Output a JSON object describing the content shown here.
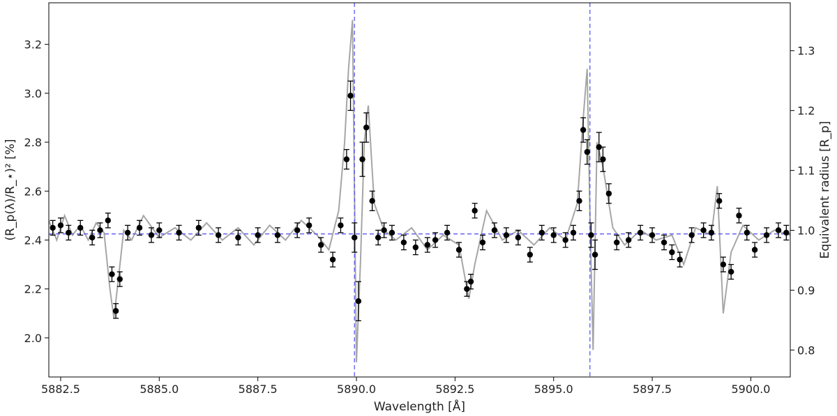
{
  "chart_data": {
    "type": "scatter",
    "title": "",
    "xlabel": "Wavelength [Å]",
    "ylabel_left": "(R_p(λ)/R_⋆)² [%]",
    "ylabel_right": "Equivalent radius [R_p]",
    "xlim": [
      5882.2,
      5901.0
    ],
    "ylim_left": [
      1.84,
      3.37
    ],
    "ylim_right": [
      0.755,
      1.38
    ],
    "x_ticks": [
      5882.5,
      5885.0,
      5887.5,
      5890.0,
      5892.5,
      5895.0,
      5897.5,
      5900.0
    ],
    "x_tick_labels": [
      "5882.5",
      "5885.0",
      "5887.5",
      "5890.0",
      "5892.5",
      "5895.0",
      "5897.5",
      "5900.0"
    ],
    "y_left_ticks": [
      2.0,
      2.2,
      2.4,
      2.6,
      2.8,
      3.0,
      3.2
    ],
    "y_left_tick_labels": [
      "2.0",
      "2.2",
      "2.4",
      "2.6",
      "2.8",
      "3.0",
      "3.2"
    ],
    "y_right_ticks": [
      0.8,
      0.9,
      1.0,
      1.1,
      1.2,
      1.3
    ],
    "y_right_tick_labels": [
      "0.8",
      "0.9",
      "1.0",
      "1.1",
      "1.2",
      "1.3"
    ],
    "baseline": 2.425,
    "vlines": [
      5889.95,
      5895.92
    ],
    "grid": false,
    "colors": {
      "points": "#000000",
      "spectrum": "#a6a6a6",
      "reference": "#5a5aee"
    },
    "series": [
      {
        "kind": "binned points with error bars",
        "x": [
          5882.3,
          5882.5,
          5882.7,
          5883.0,
          5883.3,
          5883.5,
          5883.7,
          5883.8,
          5883.9,
          5884.0,
          5884.2,
          5884.5,
          5884.8,
          5885.0,
          5885.5,
          5886.0,
          5886.5,
          5887.0,
          5887.5,
          5888.0,
          5888.5,
          5888.8,
          5889.1,
          5889.4,
          5889.6,
          5889.75,
          5889.85,
          5889.95,
          5890.05,
          5890.15,
          5890.25,
          5890.4,
          5890.55,
          5890.7,
          5890.9,
          5891.2,
          5891.5,
          5891.8,
          5892.0,
          5892.3,
          5892.6,
          5892.8,
          5892.9,
          5893.0,
          5893.2,
          5893.5,
          5893.8,
          5894.1,
          5894.4,
          5894.7,
          5895.0,
          5895.3,
          5895.5,
          5895.65,
          5895.75,
          5895.85,
          5895.95,
          5896.05,
          5896.15,
          5896.25,
          5896.4,
          5896.6,
          5896.9,
          5897.2,
          5897.5,
          5897.8,
          5898.0,
          5898.2,
          5898.5,
          5898.8,
          5899.0,
          5899.2,
          5899.3,
          5899.5,
          5899.7,
          5899.9,
          5900.1,
          5900.4,
          5900.7,
          5900.9
        ],
        "y": [
          2.45,
          2.46,
          2.43,
          2.45,
          2.41,
          2.44,
          2.48,
          2.26,
          2.11,
          2.24,
          2.43,
          2.45,
          2.42,
          2.44,
          2.43,
          2.45,
          2.42,
          2.41,
          2.42,
          2.42,
          2.44,
          2.46,
          2.38,
          2.32,
          2.46,
          2.73,
          2.99,
          2.41,
          2.15,
          2.73,
          2.86,
          2.56,
          2.41,
          2.44,
          2.43,
          2.39,
          2.37,
          2.38,
          2.4,
          2.43,
          2.36,
          2.2,
          2.23,
          2.52,
          2.39,
          2.44,
          2.42,
          2.41,
          2.34,
          2.43,
          2.42,
          2.4,
          2.43,
          2.56,
          2.85,
          2.76,
          2.42,
          2.34,
          2.78,
          2.73,
          2.59,
          2.39,
          2.4,
          2.43,
          2.42,
          2.39,
          2.35,
          2.32,
          2.42,
          2.44,
          2.43,
          2.56,
          2.3,
          2.27,
          2.5,
          2.43,
          2.36,
          2.42,
          2.44,
          2.43
        ],
        "yerr": [
          0.03,
          0.03,
          0.03,
          0.03,
          0.03,
          0.03,
          0.03,
          0.03,
          0.03,
          0.03,
          0.03,
          0.03,
          0.03,
          0.03,
          0.03,
          0.03,
          0.03,
          0.03,
          0.03,
          0.03,
          0.03,
          0.03,
          0.03,
          0.03,
          0.03,
          0.04,
          0.06,
          0.06,
          0.08,
          0.07,
          0.06,
          0.04,
          0.03,
          0.03,
          0.03,
          0.03,
          0.03,
          0.03,
          0.03,
          0.03,
          0.03,
          0.03,
          0.03,
          0.03,
          0.03,
          0.03,
          0.03,
          0.03,
          0.03,
          0.03,
          0.03,
          0.03,
          0.03,
          0.04,
          0.05,
          0.05,
          0.05,
          0.06,
          0.06,
          0.05,
          0.04,
          0.03,
          0.03,
          0.03,
          0.03,
          0.03,
          0.03,
          0.03,
          0.03,
          0.03,
          0.03,
          0.03,
          0.03,
          0.03,
          0.03,
          0.03,
          0.03,
          0.03,
          0.03,
          0.03
        ]
      },
      {
        "kind": "full-resolution spectrum",
        "x": [
          5882.2,
          5882.4,
          5882.6,
          5882.8,
          5883.0,
          5883.2,
          5883.4,
          5883.6,
          5883.75,
          5883.85,
          5883.95,
          5884.1,
          5884.3,
          5884.6,
          5885.0,
          5885.4,
          5885.8,
          5886.2,
          5886.6,
          5887.0,
          5887.4,
          5887.8,
          5888.2,
          5888.6,
          5889.0,
          5889.3,
          5889.55,
          5889.7,
          5889.8,
          5889.9,
          5889.95,
          5890.0,
          5890.1,
          5890.2,
          5890.3,
          5890.45,
          5890.7,
          5891.0,
          5891.4,
          5891.8,
          5892.2,
          5892.6,
          5892.85,
          5893.0,
          5893.3,
          5893.7,
          5894.1,
          5894.5,
          5894.9,
          5895.3,
          5895.6,
          5895.75,
          5895.85,
          5895.92,
          5896.0,
          5896.1,
          5896.25,
          5896.5,
          5896.8,
          5897.2,
          5897.6,
          5898.0,
          5898.3,
          5898.6,
          5899.0,
          5899.15,
          5899.3,
          5899.5,
          5899.8,
          5900.2,
          5900.6,
          5901.0
        ],
        "y": [
          2.48,
          2.4,
          2.5,
          2.42,
          2.46,
          2.4,
          2.47,
          2.43,
          2.2,
          2.08,
          2.22,
          2.44,
          2.4,
          2.5,
          2.41,
          2.45,
          2.4,
          2.47,
          2.4,
          2.45,
          2.38,
          2.46,
          2.4,
          2.48,
          2.42,
          2.36,
          2.52,
          2.8,
          3.1,
          3.3,
          2.6,
          1.9,
          2.3,
          2.8,
          2.95,
          2.55,
          2.44,
          2.4,
          2.45,
          2.36,
          2.42,
          2.38,
          2.16,
          2.3,
          2.52,
          2.4,
          2.44,
          2.38,
          2.45,
          2.4,
          2.55,
          2.9,
          3.1,
          2.5,
          1.95,
          2.8,
          2.7,
          2.45,
          2.38,
          2.44,
          2.4,
          2.42,
          2.3,
          2.45,
          2.42,
          2.62,
          2.1,
          2.35,
          2.46,
          2.4,
          2.44,
          2.42
        ]
      }
    ]
  }
}
